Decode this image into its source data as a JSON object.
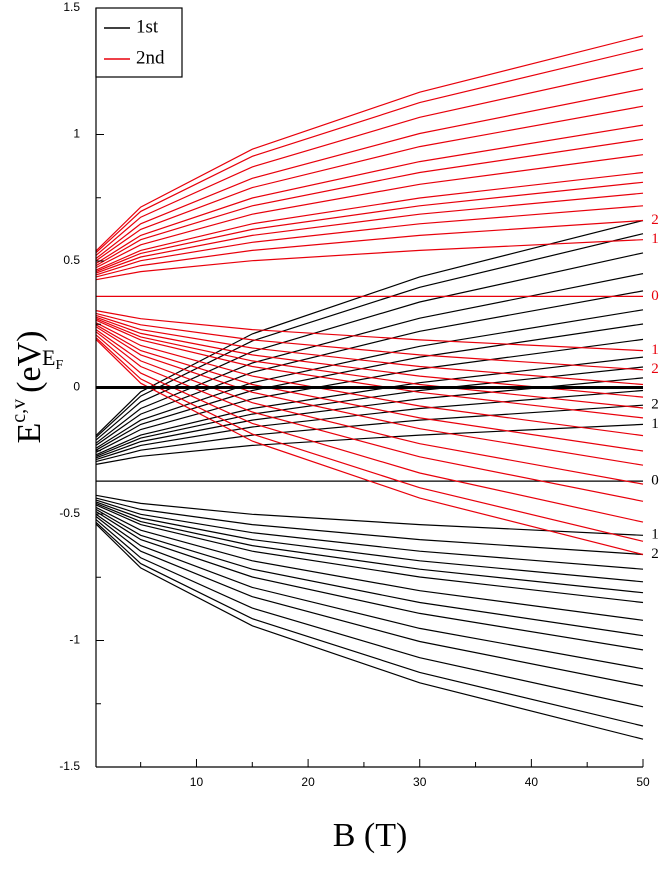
{
  "chart_data": {
    "type": "line",
    "ylabel": {
      "main": "E",
      "sup": "c,v",
      "unit": "(eV)"
    },
    "xlabel": "B (T)",
    "x": [
      1,
      5,
      15,
      30,
      50
    ],
    "xlim": [
      1,
      50
    ],
    "xticks": [
      10,
      20,
      30,
      40,
      50
    ],
    "xminor": [
      5,
      15,
      25,
      35,
      45
    ],
    "ylim": [
      -1.5,
      1.5
    ],
    "yticks": [
      -1.5,
      -1,
      -0.5,
      0,
      0.5,
      1,
      1.5
    ],
    "yminor": [
      -1.25,
      -0.75,
      -0.25,
      0.25,
      0.75,
      1.25
    ],
    "legend": "upper left",
    "fermi_level": 0,
    "fermi_label": "E",
    "fermi_label_sub": "F",
    "groups": [
      {
        "name": "1st",
        "color": "#000000",
        "lines": [
          {
            "label": "0",
            "values": [
              -0.37,
              -0.37,
              -0.37,
              -0.37,
              -0.37
            ]
          },
          {
            "label": "1",
            "values": [
              -0.304,
              -0.272,
              -0.229,
              -0.188,
              -0.146
            ]
          },
          {
            "label": "2",
            "values": [
              -0.293,
              -0.248,
              -0.188,
              -0.129,
              -0.07
            ]
          },
          {
            "values": [
              -0.285,
              -0.229,
              -0.156,
              -0.083,
              -0.012
            ]
          },
          {
            "values": [
              -0.278,
              -0.214,
              -0.129,
              -0.045,
              0.038
            ]
          },
          {
            "values": [
              -0.272,
              -0.2,
              -0.105,
              -0.012,
              0.081
            ]
          },
          {
            "values": [
              -0.266,
              -0.188,
              -0.083,
              0.019,
              0.12
            ]
          },
          {
            "values": [
              -0.256,
              -0.166,
              -0.045,
              0.073,
              0.19
            ]
          },
          {
            "values": [
              -0.248,
              -0.146,
              -0.012,
              0.12,
              0.251
            ]
          },
          {
            "values": [
              -0.24,
              -0.129,
              0.019,
              0.163,
              0.307
            ]
          },
          {
            "values": [
              -0.229,
              -0.105,
              0.06,
              0.222,
              0.382
            ]
          },
          {
            "values": [
              -0.22,
              -0.083,
              0.097,
              0.274,
              0.45
            ]
          },
          {
            "values": [
              -0.208,
              -0.057,
              0.142,
              0.338,
              0.532
            ]
          },
          {
            "values": [
              -0.197,
              -0.034,
              0.184,
              0.396,
              0.608
            ]
          },
          {
            "values": [
              -0.19,
              -0.017,
              0.212,
              0.437,
              0.66
            ]
          },
          {
            "label": "1",
            "values": [
              -0.426,
              -0.458,
              -0.501,
              -0.542,
              -0.584
            ]
          },
          {
            "label": "2",
            "values": [
              -0.437,
              -0.482,
              -0.542,
              -0.601,
              -0.66
            ]
          },
          {
            "values": [
              -0.445,
              -0.501,
              -0.574,
              -0.647,
              -0.718
            ]
          },
          {
            "values": [
              -0.452,
              -0.516,
              -0.601,
              -0.685,
              -0.768
            ]
          },
          {
            "values": [
              -0.458,
              -0.53,
              -0.625,
              -0.718,
              -0.811
            ]
          },
          {
            "values": [
              -0.464,
              -0.542,
              -0.647,
              -0.749,
              -0.85
            ]
          },
          {
            "values": [
              -0.474,
              -0.564,
              -0.685,
              -0.803,
              -0.92
            ]
          },
          {
            "values": [
              -0.482,
              -0.584,
              -0.718,
              -0.85,
              -0.981
            ]
          },
          {
            "values": [
              -0.49,
              -0.601,
              -0.749,
              -0.893,
              -1.037
            ]
          },
          {
            "values": [
              -0.501,
              -0.625,
              -0.79,
              -0.952,
              -1.112
            ]
          },
          {
            "values": [
              -0.51,
              -0.647,
              -0.827,
              -1.004,
              -1.18
            ]
          },
          {
            "values": [
              -0.522,
              -0.673,
              -0.872,
              -1.068,
              -1.262
            ]
          },
          {
            "values": [
              -0.533,
              -0.696,
              -0.914,
              -1.126,
              -1.338
            ]
          },
          {
            "values": [
              -0.54,
              -0.713,
              -0.942,
              -1.167,
              -1.39
            ]
          }
        ]
      },
      {
        "name": "2nd",
        "color": "#e8000b",
        "lines": [
          {
            "label": "0",
            "values": [
              0.36,
              0.36,
              0.36,
              0.36,
              0.36
            ]
          },
          {
            "label": "1",
            "values": [
              0.426,
              0.458,
              0.501,
              0.542,
              0.584
            ]
          },
          {
            "label": "2",
            "values": [
              0.437,
              0.482,
              0.542,
              0.601,
              0.66
            ]
          },
          {
            "values": [
              0.445,
              0.501,
              0.574,
              0.647,
              0.718
            ]
          },
          {
            "values": [
              0.452,
              0.516,
              0.601,
              0.685,
              0.768
            ]
          },
          {
            "values": [
              0.458,
              0.53,
              0.625,
              0.718,
              0.811
            ]
          },
          {
            "values": [
              0.464,
              0.542,
              0.647,
              0.749,
              0.85
            ]
          },
          {
            "values": [
              0.474,
              0.564,
              0.685,
              0.803,
              0.92
            ]
          },
          {
            "values": [
              0.482,
              0.584,
              0.718,
              0.85,
              0.981
            ]
          },
          {
            "values": [
              0.49,
              0.601,
              0.749,
              0.893,
              1.037
            ]
          },
          {
            "values": [
              0.501,
              0.625,
              0.79,
              0.952,
              1.112
            ]
          },
          {
            "values": [
              0.51,
              0.647,
              0.827,
              1.004,
              1.18
            ]
          },
          {
            "values": [
              0.522,
              0.673,
              0.872,
              1.068,
              1.262
            ]
          },
          {
            "values": [
              0.533,
              0.696,
              0.914,
              1.126,
              1.338
            ]
          },
          {
            "values": [
              0.54,
              0.713,
              0.942,
              1.167,
              1.39
            ]
          },
          {
            "label": "1",
            "values": [
              0.304,
              0.272,
              0.229,
              0.188,
              0.146
            ]
          },
          {
            "label": "2",
            "values": [
              0.293,
              0.248,
              0.188,
              0.129,
              0.07
            ]
          },
          {
            "values": [
              0.285,
              0.229,
              0.156,
              0.083,
              0.012
            ]
          },
          {
            "values": [
              0.278,
              0.214,
              0.129,
              0.045,
              -0.038
            ]
          },
          {
            "values": [
              0.272,
              0.2,
              0.105,
              0.012,
              -0.081
            ]
          },
          {
            "values": [
              0.266,
              0.188,
              0.083,
              -0.019,
              -0.12
            ]
          },
          {
            "values": [
              0.256,
              0.166,
              0.045,
              -0.073,
              -0.19
            ]
          },
          {
            "values": [
              0.248,
              0.146,
              0.012,
              -0.12,
              -0.251
            ]
          },
          {
            "values": [
              0.24,
              0.129,
              -0.019,
              -0.163,
              -0.307
            ]
          },
          {
            "values": [
              0.229,
              0.105,
              -0.06,
              -0.222,
              -0.382
            ]
          },
          {
            "values": [
              0.22,
              0.083,
              -0.097,
              -0.274,
              -0.45
            ]
          },
          {
            "values": [
              0.208,
              0.057,
              -0.142,
              -0.338,
              -0.532
            ]
          },
          {
            "values": [
              0.197,
              0.034,
              -0.184,
              -0.396,
              -0.608
            ]
          },
          {
            "values": [
              0.19,
              0.017,
              -0.212,
              -0.437,
              -0.66
            ]
          }
        ]
      }
    ]
  }
}
